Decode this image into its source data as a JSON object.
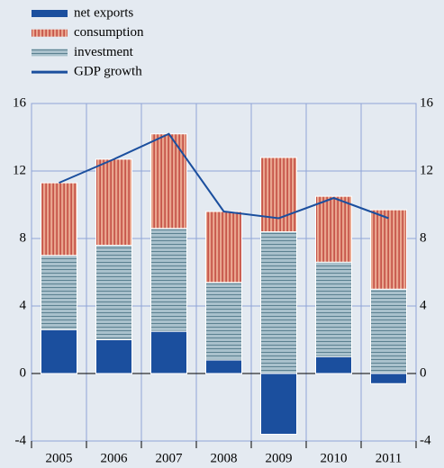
{
  "chart_data": {
    "type": "bar",
    "stacked": true,
    "categories": [
      "2005",
      "2006",
      "2007",
      "2008",
      "2009",
      "2010",
      "2011"
    ],
    "series": [
      {
        "name": "net exports",
        "color": "#1b4f9e",
        "values": [
          2.6,
          2.0,
          2.5,
          0.8,
          -3.6,
          1.0,
          -0.6
        ]
      },
      {
        "name": "consumption",
        "color": "#e9a58e",
        "values": [
          4.3,
          5.1,
          5.6,
          4.2,
          4.4,
          3.9,
          4.7
        ]
      },
      {
        "name": "investment",
        "color": "#a9c1cc",
        "values": [
          4.4,
          5.6,
          6.1,
          4.6,
          8.4,
          5.6,
          5.0
        ]
      },
      {
        "name": "GDP growth",
        "color": "#1b4f9e",
        "type": "line",
        "values": [
          11.3,
          12.7,
          14.2,
          9.6,
          9.2,
          10.4,
          9.2
        ]
      }
    ],
    "stack_order": [
      0,
      2,
      1
    ],
    "ylim": [
      -4,
      16
    ],
    "yticks": [
      -4,
      0,
      4,
      8,
      12,
      16
    ],
    "y2lim": [
      -4,
      16
    ],
    "y2ticks": [
      -4,
      0,
      4,
      8,
      12,
      16
    ],
    "grid": true,
    "legend": "top-left"
  }
}
